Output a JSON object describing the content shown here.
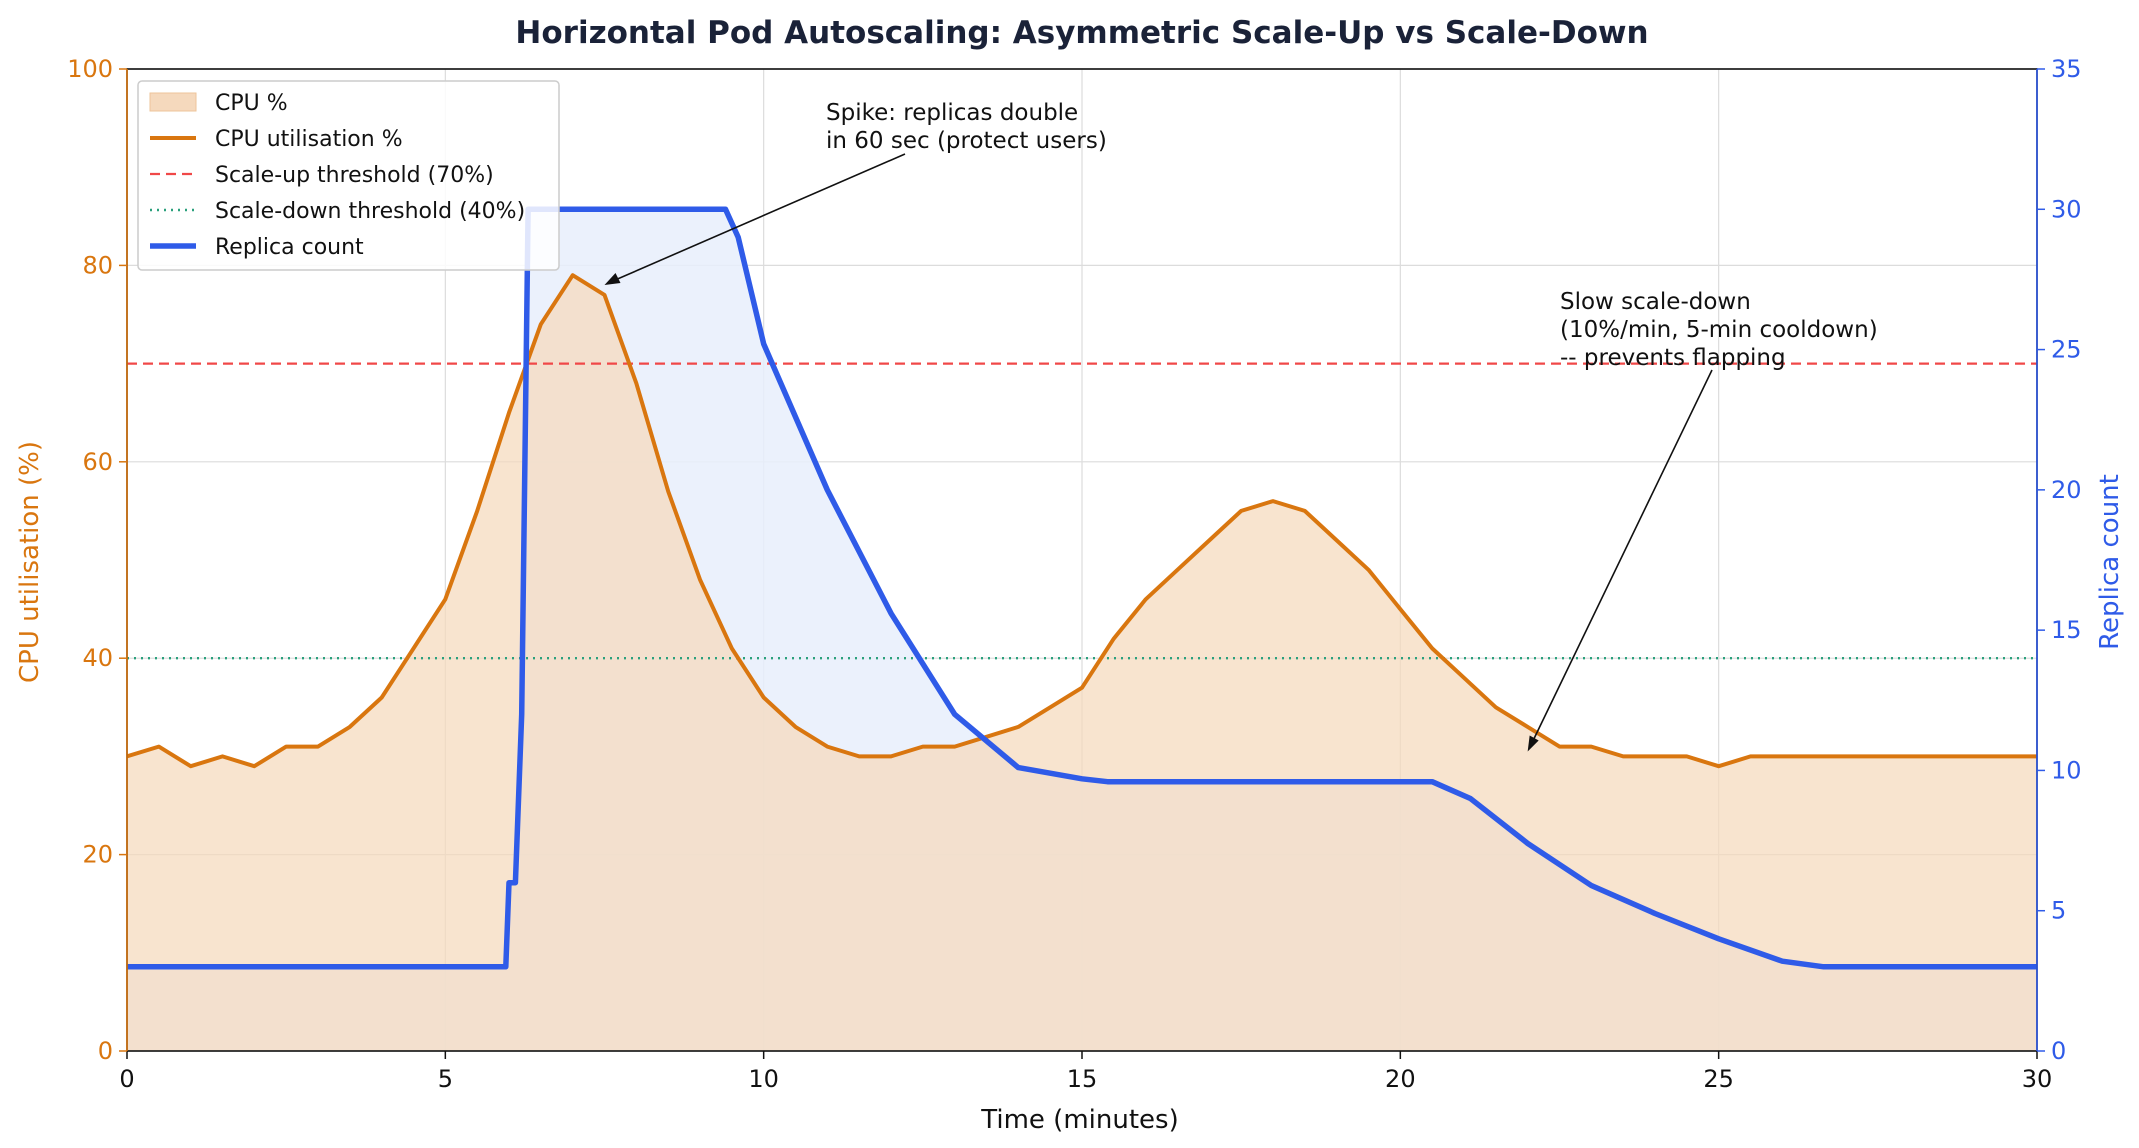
{
  "chart_data": {
    "type": "line",
    "title": "Horizontal Pod Autoscaling: Asymmetric Scale-Up vs Scale-Down",
    "xlabel": "Time (minutes)",
    "ylabel_left": "CPU utilisation (%)",
    "ylabel_right": "Replica count",
    "xlim": [
      0,
      30
    ],
    "ylim_left": [
      0,
      100
    ],
    "ylim_right": [
      0,
      35
    ],
    "xticks": [
      "0",
      "5",
      "10",
      "15",
      "20",
      "25",
      "30"
    ],
    "yticks_left": [
      "0",
      "20",
      "40",
      "60",
      "80",
      "100"
    ],
    "yticks_right": [
      "0",
      "5",
      "10",
      "15",
      "20",
      "25",
      "30",
      "35"
    ],
    "grid": true,
    "legend_position": "upper left",
    "colors": {
      "cpu": "#d9760f",
      "cpu_fill": "#f5d9bd",
      "replica": "#2f5be8",
      "replica_fill": "#e8eefc",
      "scale_up": "#f04848",
      "scale_down": "#2aa07c"
    },
    "series": [
      {
        "name": "CPU utilisation %",
        "fill_name": "CPU %",
        "axis": "left",
        "x": [
          0,
          0.5,
          1,
          1.5,
          2,
          2.5,
          3,
          3.5,
          4,
          4.5,
          5,
          5.5,
          6,
          6.5,
          7,
          7.5,
          8,
          8.5,
          9,
          9.5,
          10,
          10.5,
          11,
          11.5,
          12,
          12.5,
          13,
          13.5,
          14,
          14.5,
          15,
          15.5,
          16,
          16.5,
          17,
          17.5,
          18,
          18.5,
          19,
          19.5,
          20,
          20.5,
          21,
          21.5,
          22,
          22.5,
          23,
          23.5,
          24,
          24.5,
          25,
          25.5,
          26,
          26.5,
          27,
          27.5,
          28,
          28.5,
          29,
          29.5,
          30
        ],
        "y": [
          30,
          31,
          29,
          30,
          29,
          31,
          31,
          33,
          36,
          41,
          46,
          55,
          65,
          74,
          79,
          77,
          68,
          57,
          48,
          41,
          36,
          33,
          31,
          30,
          30,
          31,
          31,
          32,
          33,
          35,
          37,
          42,
          46,
          49,
          52,
          55,
          56,
          55,
          52,
          49,
          45,
          41,
          38,
          35,
          33,
          31,
          31,
          30,
          30,
          30,
          29,
          30,
          30,
          30,
          30,
          30,
          30,
          30,
          30,
          30,
          30
        ]
      },
      {
        "name": "Replica count",
        "axis": "right",
        "x": [
          0,
          5.95,
          6.0,
          6.1,
          6.2,
          6.3,
          9.4,
          9.6,
          10,
          11,
          12,
          13,
          14,
          14.5,
          15.0,
          15.4,
          20.5,
          20.7,
          21.1,
          22,
          23,
          24,
          25,
          26,
          26.65,
          30
        ],
        "y": [
          3,
          3,
          6,
          6,
          12,
          30,
          30,
          29,
          25.2,
          20,
          15.6,
          12,
          10.1,
          9.9,
          9.7,
          9.6,
          9.6,
          9.4,
          9.0,
          7.4,
          5.9,
          4.9,
          4.0,
          3.2,
          3,
          3
        ]
      }
    ],
    "thresholds": [
      {
        "name": "Scale-up threshold (70%)",
        "value": 70
      },
      {
        "name": "Scale-down threshold (40%)",
        "value": 40
      }
    ],
    "annotations": [
      {
        "lines": [
          "Spike: replicas double",
          "in 60 sec (protect users)"
        ],
        "x": 7.5,
        "y": 78
      },
      {
        "lines": [
          "Slow scale-down",
          "(10%/min, 5-min cooldown)",
          "-- prevents flapping"
        ],
        "x": 22,
        "y": 30.5
      }
    ],
    "legend": [
      "CPU %",
      "CPU utilisation %",
      "Scale-up threshold (70%)",
      "Scale-down threshold (40%)",
      "Replica count"
    ]
  }
}
